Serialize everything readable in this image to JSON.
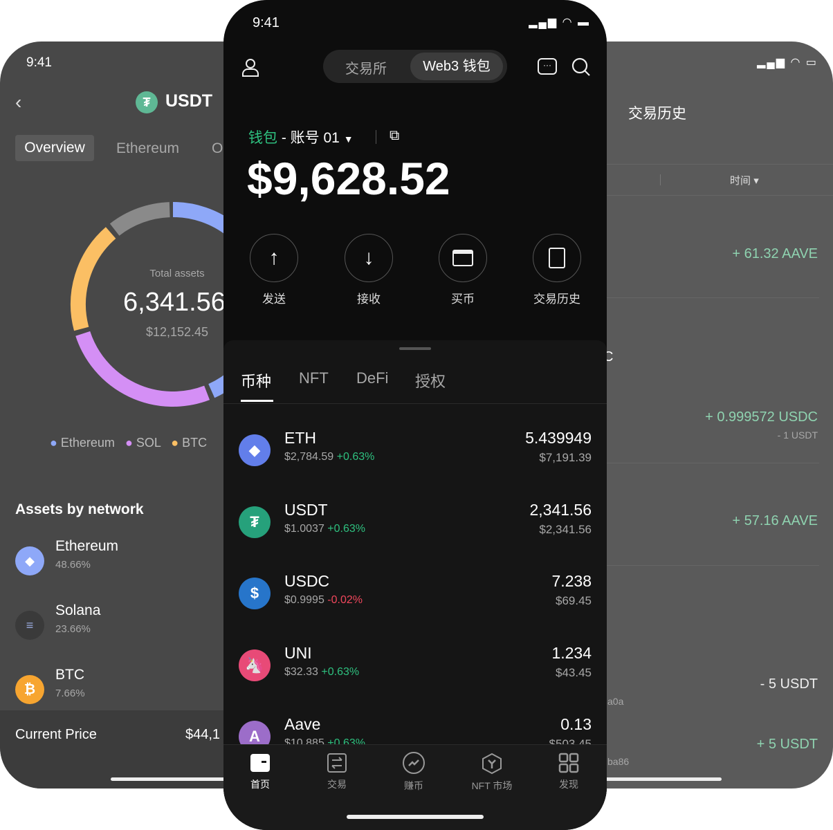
{
  "left": {
    "time": "9:41",
    "title": "USDT",
    "tabs": [
      "Overview",
      "Ethereum",
      "O"
    ],
    "donut": {
      "label": "Total assets",
      "amount": "6,341.56",
      "usd": "$12,152.45"
    },
    "legend": [
      {
        "name": "Ethereum",
        "color": "#8ea8f8"
      },
      {
        "name": "SOL",
        "color": "#d48ff5"
      },
      {
        "name": "BTC",
        "color": "#fbbf64"
      }
    ],
    "section_title": "Assets by network",
    "networks": [
      {
        "name": "Ethereum",
        "pct": "48.66%"
      },
      {
        "name": "Solana",
        "pct": "23.66%"
      },
      {
        "name": "BTC",
        "pct": "7.66%"
      }
    ],
    "price_label": "Current Price",
    "price_value": "$44,1"
  },
  "center": {
    "time": "9:41",
    "mode_tabs": [
      "交易所",
      "Web3 钱包"
    ],
    "wallet_label": "钱包",
    "account": "- 账号 01",
    "balance": "$9,628.52",
    "actions": [
      "发送",
      "接收",
      "买币",
      "交易历史"
    ],
    "asset_tabs": [
      "币种",
      "NFT",
      "DeFi",
      "授权"
    ],
    "assets": [
      {
        "symbol": "ETH",
        "price": "$2,784.59",
        "change": "+0.63%",
        "up": true,
        "amount": "5.439949",
        "value": "$7,191.39",
        "color": "#627eea",
        "glyph": "◆"
      },
      {
        "symbol": "USDT",
        "price": "$1.0037",
        "change": "+0.63%",
        "up": true,
        "amount": "2,341.56",
        "value": "$2,341.56",
        "color": "#26a17b",
        "glyph": "₮"
      },
      {
        "symbol": "USDC",
        "price": "$0.9995",
        "change": "-0.02%",
        "up": false,
        "amount": "7.238",
        "value": "$69.45",
        "color": "#2775ca",
        "glyph": "$"
      },
      {
        "symbol": "UNI",
        "price": "$32.33",
        "change": "+0.63%",
        "up": true,
        "amount": "1.234",
        "value": "$43.45",
        "color": "#e84a77",
        "glyph": "🦄"
      },
      {
        "symbol": "Aave",
        "price": "$10.885",
        "change": "+0.63%",
        "up": true,
        "amount": "0.13",
        "value": "$503.45",
        "color": "#9c6dc9",
        "glyph": "A"
      }
    ],
    "nav": [
      "首页",
      "交易",
      "赚币",
      "NFT 市场",
      "发现"
    ]
  },
  "right": {
    "title": "交易历史",
    "filter": "时间",
    "txs": [
      {
        "main": "+ 61.32 AAVE"
      },
      {
        "main": "+ 0.999572 USDC",
        "sub": "- 1 USDT"
      },
      {
        "main": "+ 57.16 AAVE"
      },
      {
        "main": "- 5 USDT"
      },
      {
        "main": "+ 5 USDT"
      }
    ],
    "fragments": [
      "C",
      "a0a",
      "ba86"
    ]
  }
}
